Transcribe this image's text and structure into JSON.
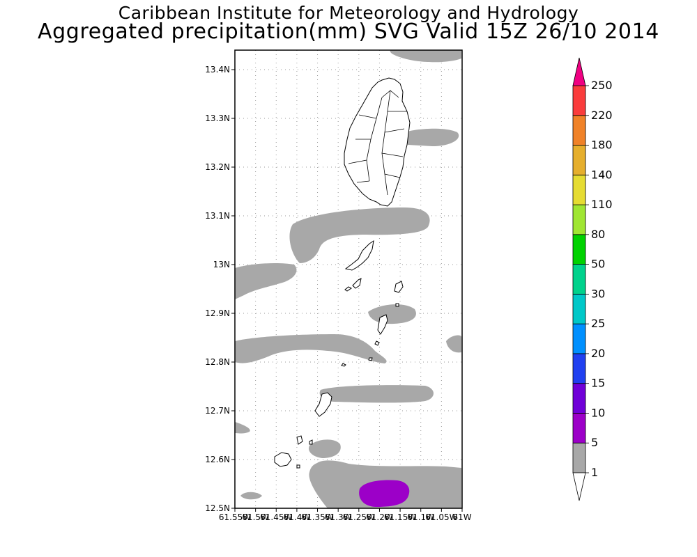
{
  "title": "Caribbean Institute for Meteorology and Hydrology",
  "subtitle": "Aggregated precipitation(mm) SVG Valid 15Z 26/10 2014",
  "map": {
    "lat_ticks": [
      "13.4N",
      "13.3N",
      "13.2N",
      "13.1N",
      "13N",
      "12.9N",
      "12.8N",
      "12.7N",
      "12.6N",
      "12.5N"
    ],
    "lon_ticks": [
      "61.55W",
      "61.5W",
      "61.45W",
      "61.4W",
      "61.35W",
      "61.3W",
      "61.25W",
      "61.2W",
      "61.15W",
      "61.1W",
      "61.05W",
      "61W"
    ],
    "lat_range": [
      12.5,
      13.44
    ],
    "lon_range": [
      -61.55,
      -61.0
    ],
    "land_outline_color": "#000000",
    "precip_light_color": "#a8a8a8",
    "precip_5_10_color": "#9c00c8"
  },
  "colorbar": {
    "levels": [
      "1",
      "5",
      "10",
      "15",
      "20",
      "25",
      "30",
      "50",
      "80",
      "110",
      "140",
      "180",
      "220",
      "250"
    ],
    "colors": [
      "#a8a8a8",
      "#9c00c8",
      "#7000d8",
      "#2040f0",
      "#0090ff",
      "#00c8c8",
      "#00d28c",
      "#00d200",
      "#a0e632",
      "#e6dc32",
      "#e6af2d",
      "#f08228",
      "#fa3c3c",
      "#f00082"
    ],
    "arrow_top_color": "#f00082",
    "arrow_bottom_color": "#ffffff"
  }
}
